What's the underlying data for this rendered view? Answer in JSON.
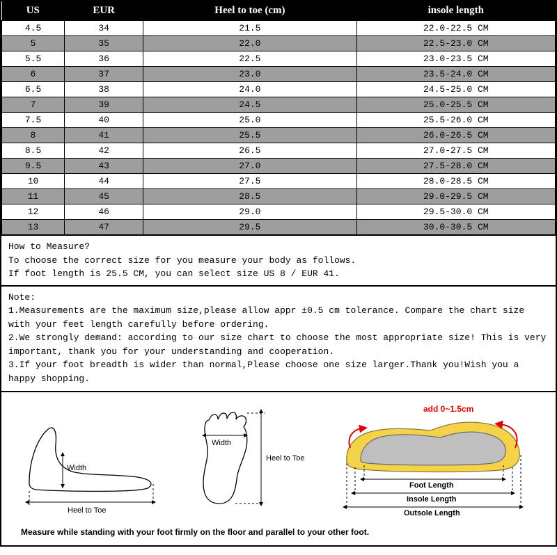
{
  "table": {
    "columns": [
      "US",
      "EUR",
      "Heel to toe (cm)",
      "insole length"
    ],
    "rows": [
      [
        "4.5",
        "34",
        "21.5",
        "22.0-22.5 CM"
      ],
      [
        "5",
        "35",
        "22.0",
        "22.5-23.0 CM"
      ],
      [
        "5.5",
        "36",
        "22.5",
        "23.0-23.5 CM"
      ],
      [
        "6",
        "37",
        "23.0",
        "23.5-24.0 CM"
      ],
      [
        "6.5",
        "38",
        "24.0",
        "24.5-25.0 CM"
      ],
      [
        "7",
        "39",
        "24.5",
        "25.0-25.5 CM"
      ],
      [
        "7.5",
        "40",
        "25.0",
        "25.5-26.0 CM"
      ],
      [
        "8",
        "41",
        "25.5",
        "26.0-26.5 CM"
      ],
      [
        "8.5",
        "42",
        "26.5",
        "27.0-27.5 CM"
      ],
      [
        "9.5",
        "43",
        "27.0",
        "27.5-28.0 CM"
      ],
      [
        "10",
        "44",
        "27.5",
        "28.0-28.5 CM"
      ],
      [
        "11",
        "45",
        "28.5",
        "29.0-29.5 CM"
      ],
      [
        "12",
        "46",
        "29.0",
        "29.5-30.0 CM"
      ],
      [
        "13",
        "47",
        "29.5",
        "30.0-30.5 CM"
      ]
    ],
    "header_bg": "#000000",
    "header_fg": "#ffffff",
    "row_odd_bg": "#9e9e9e",
    "row_even_bg": "#ffffff",
    "border_color": "#000000",
    "font_family_header": "Times New Roman",
    "font_family_body": "Courier New",
    "header_fontsize": 15,
    "cell_fontsize": 13
  },
  "howto": {
    "title": "How to Measure?",
    "line1": "To choose the correct size for you measure your body as follows.",
    "line2": "If foot length is 25.5 CM, you can select size US 8 / EUR 41."
  },
  "note": {
    "title": "Note:",
    "items": [
      "1.Measurements are the maximum size,please allow appr ±0.5 cm tolerance. Compare the chart size with your feet length carefully before ordering.",
      "2.We strongly demand: according to our size chart to choose the most appropriate size! This is very important, thank you for your understanding and cooperation.",
      "3.If your foot breadth is wider than normal,Please choose one size larger.Thank you!Wish you a happy shopping."
    ]
  },
  "diagram": {
    "side_width_label": "Width",
    "side_htt_label": "Heel to Toe",
    "top_width_label": "Width",
    "top_htt_label": "Heel to Toe",
    "add_label": "add 0~1.5cm",
    "foot_length_label": "Foot Length",
    "insole_length_label": "Insole Length",
    "outsole_length_label": "Outsole Length",
    "caption": "Measure while standing with your foot firmly on the floor and parallel to your other foot.",
    "accent_color": "#d00000",
    "shoe_color": "#f4d34a",
    "sock_color": "#bfbfbf"
  }
}
